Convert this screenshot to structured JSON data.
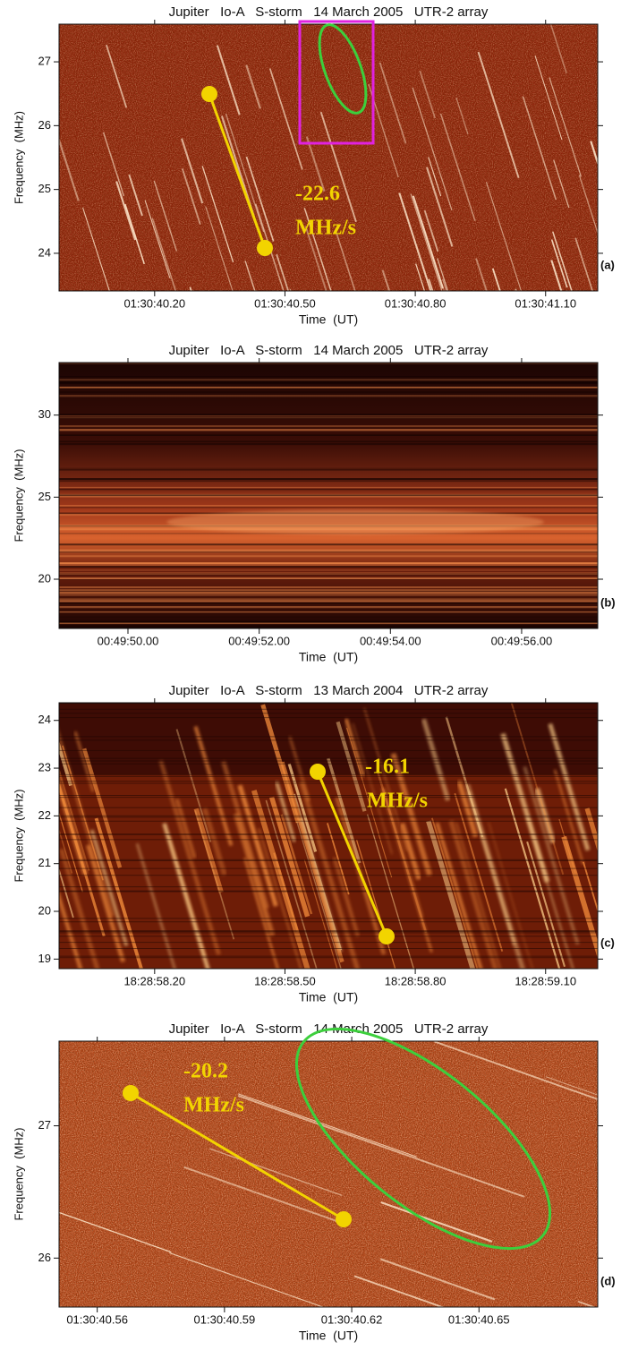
{
  "chart_data": [
    {
      "type": "spectrogram",
      "title": "Jupiter   Io-A   S-storm   14 March 2005   UTR-2 array",
      "xlabel": "Time  (UT)",
      "ylabel": "Frequency  (MHz)",
      "panel_label": "(a)",
      "xlim": [
        5439.98,
        5441.22
      ],
      "xticks": [
        {
          "value": 5440.2,
          "label": "01:30:40.20"
        },
        {
          "value": 5440.5,
          "label": "01:30:40.50"
        },
        {
          "value": 5440.8,
          "label": "01:30:40.80"
        },
        {
          "value": 5441.1,
          "label": "01:30:41.10"
        }
      ],
      "ylim": [
        23.41,
        27.59
      ],
      "yticks": [
        24,
        25,
        26,
        27
      ],
      "annotations": [
        "-22.6",
        "MHz/s"
      ]
    },
    {
      "type": "spectrogram",
      "title": "Jupiter   Io-A   S-storm   14 March 2005   UTR-2 array",
      "xlabel": "Time  (UT)",
      "ylabel": "Frequency  (MHz)",
      "panel_label": "(b)",
      "xlim": [
        2988.95,
        2997.16
      ],
      "xticks": [
        {
          "value": 2990,
          "label": "00:49:50.00"
        },
        {
          "value": 2992,
          "label": "00:49:52.00"
        },
        {
          "value": 2994,
          "label": "00:49:54.00"
        },
        {
          "value": 2996,
          "label": "00:49:56.00"
        }
      ],
      "ylim": [
        17,
        33.2
      ],
      "yticks": [
        20,
        25,
        30
      ]
    },
    {
      "type": "spectrogram",
      "title": "Jupiter   Io-A   S-storm   13 March 2004   UTR-2 array",
      "xlabel": "Time  (UT)",
      "ylabel": "Frequency  (MHz)",
      "panel_label": "(c)",
      "xlim": [
        66537.98,
        66539.22
      ],
      "xticks": [
        {
          "value": 66538.2,
          "label": "18:28:58.20"
        },
        {
          "value": 66538.5,
          "label": "18:28:58.50"
        },
        {
          "value": 66538.8,
          "label": "18:28:58.80"
        },
        {
          "value": 66539.1,
          "label": "18:28:59.10"
        }
      ],
      "ylim": [
        18.8,
        24.37
      ],
      "yticks": [
        19,
        20,
        21,
        22,
        23,
        24
      ],
      "annotations": [
        "-16.1",
        "MHz/s"
      ]
    },
    {
      "type": "spectrogram",
      "title": "Jupiter   Io-A   S-storm   14 March 2005   UTR-2 array",
      "xlabel": "Time  (UT)",
      "ylabel": "Frequency  (MHz)",
      "panel_label": "(d)",
      "xlim": [
        5440.551,
        5440.678
      ],
      "xticks": [
        {
          "value": 5440.56,
          "label": "01:30:40.56"
        },
        {
          "value": 5440.59,
          "label": "01:30:40.59"
        },
        {
          "value": 5440.62,
          "label": "01:30:40.62"
        },
        {
          "value": 5440.65,
          "label": "01:30:40.65"
        }
      ],
      "ylim": [
        25.63,
        27.64
      ],
      "yticks": [
        26,
        27
      ],
      "annotations": [
        "-20.2",
        "MHz/s"
      ]
    }
  ]
}
